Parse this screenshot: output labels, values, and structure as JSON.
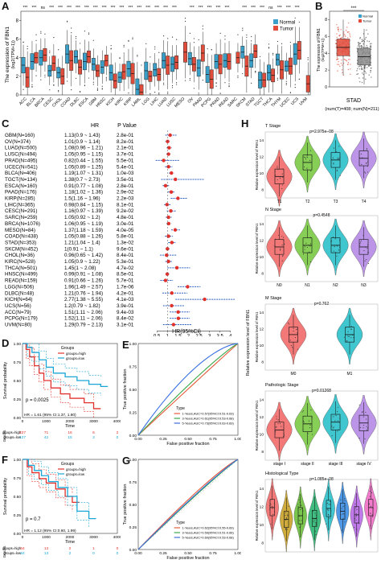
{
  "panel_letters": [
    "A",
    "B",
    "C",
    "D",
    "E",
    "F",
    "G",
    "H"
  ],
  "colors": {
    "normal": "#3a9fc8",
    "tumor": "#e04b3a",
    "red": "#e0312c",
    "blue": "#2a5fc0"
  },
  "A": {
    "ylabel": "The expression of FBN1",
    "ylabel_sub": "(log2(TPM+1))",
    "legend": [
      "Normal",
      "Tumor"
    ],
    "categories": [
      "ACC",
      "BLCA",
      "BRCA",
      "CESC",
      "CHOL",
      "COAD",
      "DLBC",
      "ESCA",
      "GBM",
      "HNSC",
      "KICH",
      "KIRC",
      "KIRP",
      "LAML",
      "LGG",
      "LIHC",
      "LUAD",
      "LUSC",
      "MESO",
      "OV",
      "PAAD",
      "PCPG",
      "PRAD",
      "READ",
      "SARC",
      "SKCM",
      "STAD",
      "TGCT",
      "THCA",
      "THYM",
      "UCEC",
      "UCS",
      "UVM"
    ],
    "sig": [
      "***",
      "***",
      "ns",
      "***",
      "***",
      "***",
      "***",
      "***",
      "***",
      "***",
      "***",
      "***",
      "***",
      "***",
      "***",
      "***",
      "***",
      "***",
      "",
      "***",
      "***",
      "***",
      "***",
      "***",
      "",
      "***",
      "***",
      "***",
      "ns",
      "***",
      "***",
      "***",
      ""
    ],
    "y_ticks": [
      "0",
      "2",
      "4",
      "6",
      "8"
    ],
    "chart_data": {
      "type": "box",
      "ylim": [
        0,
        9
      ],
      "series": [
        {
          "name": "Normal",
          "median": [
            3.2,
            3.6,
            4.0,
            2.6,
            2.4,
            4.4,
            4.1,
            3.6,
            3.3,
            3.0,
            2.4,
            1.9,
            2.8,
            0.6,
            2.6,
            2.7,
            3.7,
            3.3,
            null,
            3.9,
            2.9,
            2.2,
            3.6,
            3.7,
            null,
            4.6,
            3.7,
            1.6,
            2.4,
            3.8,
            3.1,
            4.4,
            null
          ]
        },
        {
          "name": "Tumor",
          "median": [
            1.9,
            4.0,
            4.3,
            3.4,
            2.0,
            3.7,
            3.0,
            4.1,
            2.6,
            3.7,
            1.5,
            2.5,
            2.3,
            0.3,
            2.0,
            2.2,
            3.2,
            3.5,
            4.6,
            3.3,
            4.5,
            1.7,
            3.3,
            3.6,
            4.0,
            3.1,
            4.7,
            1.6,
            2.1,
            2.7,
            3.1,
            4.8,
            1.2
          ]
        }
      ]
    }
  },
  "B": {
    "title": "STAD",
    "subtitle": "(num(T)=408; num(N)=211)",
    "ylabel": "The expression of FBN1",
    "ylabel_sub": "(log2(TPM+1))",
    "sig": "***",
    "y_ticks": [
      "0",
      "2",
      "4",
      "6",
      "8"
    ],
    "legend": [
      "Normal",
      "Tumor"
    ],
    "chart_data": {
      "type": "box",
      "categories": [
        "Tumor",
        "Normal"
      ],
      "median": [
        4.7,
        3.6
      ],
      "ylim": [
        0,
        9
      ]
    }
  },
  "C": {
    "header_hr": "HR",
    "header_p": "P Value",
    "xlabel": "HR(95%CI)",
    "x_ticks": [
      "0.5",
      "1",
      "1.5",
      "2",
      "2.5",
      "3",
      "3.5",
      "4"
    ],
    "rows": [
      {
        "label": "GBM(N=160)",
        "hr": "1.13(0.9 ~ 1.43)",
        "p": "2.8e-01",
        "v": 1.13,
        "lo": 0.9,
        "hi": 1.43
      },
      {
        "label": "OV(N=374)",
        "hr": "1.01(0.9 ~ 1.14)",
        "p": "8.2e-01",
        "v": 1.01,
        "lo": 0.9,
        "hi": 1.14
      },
      {
        "label": "LUAD(N=500)",
        "hr": "1.08(0.96 ~ 1.21)",
        "p": "2.1e-01",
        "v": 1.08,
        "lo": 0.96,
        "hi": 1.21
      },
      {
        "label": "LUSC(N=494)",
        "hr": "1.05(0.95 ~ 1.15)",
        "p": "3.7e-01",
        "v": 1.05,
        "lo": 0.95,
        "hi": 1.15
      },
      {
        "label": "PRAD(N=495)",
        "hr": "0.82(0.44 ~ 1.55)",
        "p": "5.5e-01",
        "v": 0.82,
        "lo": 0.44,
        "hi": 1.55
      },
      {
        "label": "UCEC(N=541)",
        "hr": "1.05(0.89 ~ 1.25)",
        "p": "5.4e-01",
        "v": 1.05,
        "lo": 0.89,
        "hi": 1.25
      },
      {
        "label": "BLCA(N=406)",
        "hr": "1.19(1.07 ~ 1.31)",
        "p": "1.0e-03",
        "v": 1.19,
        "lo": 1.07,
        "hi": 1.31
      },
      {
        "label": "TGCT(N=134)",
        "hr": "1.38(0.7 ~ 2.73)",
        "p": "3.5e-01",
        "v": 1.38,
        "lo": 0.7,
        "hi": 2.73
      },
      {
        "label": "ESCA(N=160)",
        "hr": "0.91(0.77 ~ 1.08)",
        "p": "2.8e-01",
        "v": 0.91,
        "lo": 0.77,
        "hi": 1.08
      },
      {
        "label": "PAAD(N=176)",
        "hr": "1.18(1.02 ~ 1.36)",
        "p": "2.9e-02",
        "v": 1.18,
        "lo": 1.02,
        "hi": 1.36
      },
      {
        "label": "KIRP(N=285)",
        "hr": "1.5(1.16 ~ 1.96)",
        "p": "2.2e-03",
        "v": 1.5,
        "lo": 1.16,
        "hi": 1.96
      },
      {
        "label": "LIHC(N=365)",
        "hr": "0.98(0.84 ~ 1.15)",
        "p": "8.1e-01",
        "v": 0.98,
        "lo": 0.84,
        "hi": 1.15
      },
      {
        "label": "CESC(N=291)",
        "hr": "1.16(0.97 ~ 1.39)",
        "p": "9.2e-02",
        "v": 1.16,
        "lo": 0.97,
        "hi": 1.39
      },
      {
        "label": "SARC(N=259)",
        "hr": "1.05(0.92 ~ 1.2)",
        "p": "4.8e-01",
        "v": 1.05,
        "lo": 0.92,
        "hi": 1.2
      },
      {
        "label": "BRCA(N=1076)",
        "hr": "1.06(0.95 ~ 1.19)",
        "p": "3.0e-01",
        "v": 1.06,
        "lo": 0.95,
        "hi": 1.19
      },
      {
        "label": "MESO(N=84)",
        "hr": "1.37(1.18 ~ 1.59)",
        "p": "4.0e-05",
        "v": 1.37,
        "lo": 1.18,
        "hi": 1.59
      },
      {
        "label": "COAD(N=438)",
        "hr": "1.05(0.88 ~ 1.26)",
        "p": "5.8e-01",
        "v": 1.05,
        "lo": 0.88,
        "hi": 1.26
      },
      {
        "label": "STAD(N=353)",
        "hr": "1.21(1.04 ~ 1.4)",
        "p": "1.3e-02",
        "v": 1.21,
        "lo": 1.04,
        "hi": 1.4
      },
      {
        "label": "SKCM(N=452)",
        "hr": "1(0.91 ~ 1.1)",
        "p": "9.6e-01",
        "v": 1.0,
        "lo": 0.91,
        "hi": 1.1
      },
      {
        "label": "CHOL(N=36)",
        "hr": "0.96(0.65 ~ 1.42)",
        "p": "8.4e-01",
        "v": 0.96,
        "lo": 0.65,
        "hi": 1.42
      },
      {
        "label": "KIRC(N=528)",
        "hr": "1.05(0.9 ~ 1.22)",
        "p": "5.3e-01",
        "v": 1.05,
        "lo": 0.9,
        "hi": 1.22
      },
      {
        "label": "THCA(N=501)",
        "hr": "1.45(1 ~ 2.08)",
        "p": "4.7e-02",
        "v": 1.45,
        "lo": 1.0,
        "hi": 2.08
      },
      {
        "label": "HNSC(N=499)",
        "hr": "0.99(0.91 ~ 1.08)",
        "p": "8.5e-01",
        "v": 0.99,
        "lo": 0.91,
        "hi": 1.08
      },
      {
        "label": "READ(N=159)",
        "hr": "0.91(0.66 ~ 1.26)",
        "p": "5.7e-01",
        "v": 0.91,
        "lo": 0.66,
        "hi": 1.26
      },
      {
        "label": "LGG(N=506)",
        "hr": "1.96(1.49 ~ 2.57)",
        "p": "1.7e-06",
        "v": 1.96,
        "lo": 1.49,
        "hi": 2.57
      },
      {
        "label": "DLBC(N=48)",
        "hr": "1.21(0.76 ~ 1.94)",
        "p": "4.2e-01",
        "v": 1.21,
        "lo": 0.76,
        "hi": 1.94
      },
      {
        "label": "KICH(N=64)",
        "hr": "2.77(1.38 ~ 5.55)",
        "p": "4.1e-03",
        "v": 2.77,
        "lo": 1.38,
        "hi": 5.55
      },
      {
        "label": "UCS(N=56)",
        "hr": "1.2(0.79 ~ 1.82)",
        "p": "3.9e-01",
        "v": 1.2,
        "lo": 0.79,
        "hi": 1.82
      },
      {
        "label": "ACC(N=79)",
        "hr": "1.51(1.11 ~ 2.06)",
        "p": "9.4e-03",
        "v": 1.51,
        "lo": 1.11,
        "hi": 2.06
      },
      {
        "label": "PCPG(N=179)",
        "hr": "1.52(1.11 ~ 2.06)",
        "p": "8.4e-02",
        "v": 1.52,
        "lo": 1.11,
        "hi": 2.06
      },
      {
        "label": "UVM(N=80)",
        "hr": "1.29(0.79 ~ 2.13)",
        "p": "3.1e-01",
        "v": 1.29,
        "lo": 0.79,
        "hi": 2.13
      }
    ]
  },
  "D": {
    "ylabel": "Survival probability",
    "xlabel": "Time",
    "legend_title": "Groups",
    "legend": [
      "groups=high",
      "groups=low"
    ],
    "p_text": "p = 0.0025",
    "hr_text": "HR = 1.61 (95% CI:1.37, 1.80)",
    "y_ticks": [
      "0.00",
      "0.25",
      "0.50",
      "0.75",
      "1.00"
    ],
    "x_ticks": [
      "0",
      "1000",
      "2000",
      "3000",
      "4000"
    ],
    "risk_label": "Groups",
    "risk_rows": [
      {
        "name": "groups=high",
        "counts": [
          "227",
          "71",
          "16",
          "6",
          "2"
        ]
      },
      {
        "name": "groups=low",
        "counts": [
          "127",
          "42",
          "15",
          "3",
          "0"
        ]
      }
    ]
  },
  "E": {
    "ylabel": "True positive fraction",
    "xlabel": "False positive fraction",
    "x_ticks": [
      "0.00",
      "0.25",
      "0.50",
      "0.75",
      "1.00"
    ],
    "y_ticks": [
      "0.00",
      "0.25",
      "0.50",
      "0.75",
      "1.00"
    ],
    "legend_title": "Type",
    "legend": [
      "1-Years,AUC=0.57(95%CI:0.51-0.63)",
      "3-Years,AUC=0.61(95%CI:0.53-0.68)",
      "5-Years,AUC=0.73(95%CI:0.63-0.83)"
    ]
  },
  "F": {
    "ylabel": "Survival probability",
    "xlabel": "Time",
    "legend_title": "Groups",
    "legend": [
      "groups=high",
      "groups=low"
    ],
    "p_text": "p = 0.7",
    "hr_text": "HR = 1.12 (95% CI:0.60, 1.99)",
    "y_ticks": [
      "0.00",
      "0.25",
      "0.50",
      "0.75",
      "1.00"
    ],
    "x_ticks": [
      "0",
      "1000",
      "2000",
      "3000",
      "4000"
    ],
    "risk_label": "Groups",
    "risk_rows": [
      {
        "name": "groups=high",
        "counts": [
          "64",
          "13",
          "2",
          "1",
          "0"
        ]
      },
      {
        "name": "groups=low",
        "counts": [
          "84",
          "13",
          "2",
          "0",
          "0"
        ]
      }
    ]
  },
  "G": {
    "ylabel": "True positive fraction",
    "xlabel": "False positive fraction",
    "x_ticks": [
      "0.00",
      "0.25",
      "0.50",
      "0.75",
      "1.00"
    ],
    "y_ticks": [
      "0.00",
      "0.25",
      "0.50",
      "0.75",
      "1.00"
    ],
    "legend_title": "Type",
    "legend": [
      "1-Years,AUC=0.62(95%CI:0.55-0.69)",
      "3-Years,AUC=0.59(95%CI:0.51-0.66)",
      "5-Years,AUC=0.60(95%CI:0.53-0.68)"
    ]
  },
  "H": {
    "ylabel": "Relative expression level of FBN1",
    "sections": [
      {
        "title": "T Stage",
        "p": "p=2.975e−08",
        "cats": [
          "T1",
          "T2",
          "T3",
          "T4"
        ],
        "colors": [
          "#f26b6b",
          "#7ac943",
          "#2bc0c9",
          "#b58ae6"
        ],
        "ticks": [
          "8",
          "10",
          "12",
          "14"
        ],
        "ylim": [
          7,
          15
        ],
        "medians": [
          9.6,
          11.3,
          11.6,
          11.8
        ]
      },
      {
        "title": "N Stage",
        "p": "p=0.4548",
        "cats": [
          "N0",
          "N1",
          "N2",
          "N3"
        ],
        "colors": [
          "#f26b6b",
          "#7ac943",
          "#2bc0c9",
          "#b58ae6"
        ],
        "ticks": [
          "8",
          "10",
          "12",
          "14"
        ],
        "ylim": [
          7,
          15
        ],
        "medians": [
          11.2,
          11.4,
          11.4,
          11.2
        ]
      },
      {
        "title": "M Stage",
        "p": "p=0.762",
        "cats": [
          "M0",
          "M1"
        ],
        "colors": [
          "#f26b6b",
          "#2bc0c9"
        ],
        "ticks": [
          "8",
          "10",
          "12",
          "14"
        ],
        "ylim": [
          7,
          15
        ],
        "medians": [
          11.3,
          11.3
        ]
      },
      {
        "title": "Pathologic Stage",
        "p": "p=0.01268",
        "cats": [
          "stage I",
          "stage II",
          "stage III",
          "stage IV"
        ],
        "colors": [
          "#f26b6b",
          "#7ac943",
          "#2bc0c9",
          "#b58ae6"
        ],
        "ticks": [
          "8",
          "10",
          "12",
          "14"
        ],
        "ylim": [
          7,
          15
        ],
        "medians": [
          10.5,
          11.2,
          11.4,
          11.3
        ]
      },
      {
        "title": "Histological Type",
        "p": "p=1.085e−08",
        "cats": [
          "",
          "",
          "",
          "",
          "",
          "",
          "",
          ""
        ],
        "colors": [
          "#f26b6b",
          "#c9a227",
          "#6bbf3a",
          "#2bb673",
          "#2bc0c9",
          "#3a8ee6",
          "#b96be6",
          "#f06ec6"
        ],
        "ticks": [
          "8",
          "10",
          "12",
          "14"
        ],
        "ylim": [
          7,
          15
        ],
        "medians": [
          11.9,
          10.6,
          11.0,
          10.7,
          11.8,
          11.5,
          11.1,
          11.9
        ]
      }
    ]
  }
}
